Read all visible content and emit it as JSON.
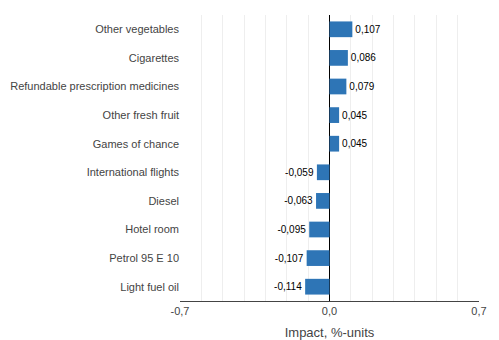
{
  "chart_data": {
    "type": "bar",
    "orientation": "horizontal",
    "categories": [
      "Light fuel oil",
      "Petrol 95 E 10",
      "Hotel room",
      "Diesel",
      "International flights",
      "Games of chance",
      "Other fresh fruit",
      "Refundable prescription medicines",
      "Cigarettes",
      "Other vegetables"
    ],
    "values": [
      -0.114,
      -0.107,
      -0.095,
      -0.063,
      -0.059,
      0.045,
      0.045,
      0.079,
      0.086,
      0.107
    ],
    "value_labels": [
      "-0,114",
      "-0,107",
      "-0,095",
      "-0,063",
      "-0,059",
      "0,045",
      "0,045",
      "0,079",
      "0,086",
      "0,107"
    ],
    "data_labels": true,
    "color": "#2e75b6",
    "xlabel": "Impact, %-units",
    "xlim": [
      -0.7,
      0.7
    ],
    "xticks": [
      {
        "value": -0.7,
        "label": "-0,7"
      },
      {
        "value": -0.6,
        "label": null
      },
      {
        "value": -0.5,
        "label": null
      },
      {
        "value": -0.4,
        "label": null
      },
      {
        "value": -0.3,
        "label": null
      },
      {
        "value": -0.2,
        "label": null
      },
      {
        "value": -0.1,
        "label": null
      },
      {
        "value": 0.0,
        "label": "0,0"
      },
      {
        "value": 0.1,
        "label": null
      },
      {
        "value": 0.2,
        "label": null
      },
      {
        "value": 0.3,
        "label": null
      },
      {
        "value": 0.4,
        "label": null
      },
      {
        "value": 0.5,
        "label": null
      },
      {
        "value": 0.6,
        "label": null
      },
      {
        "value": 0.7,
        "label": "0,7"
      }
    ],
    "grid": true
  }
}
